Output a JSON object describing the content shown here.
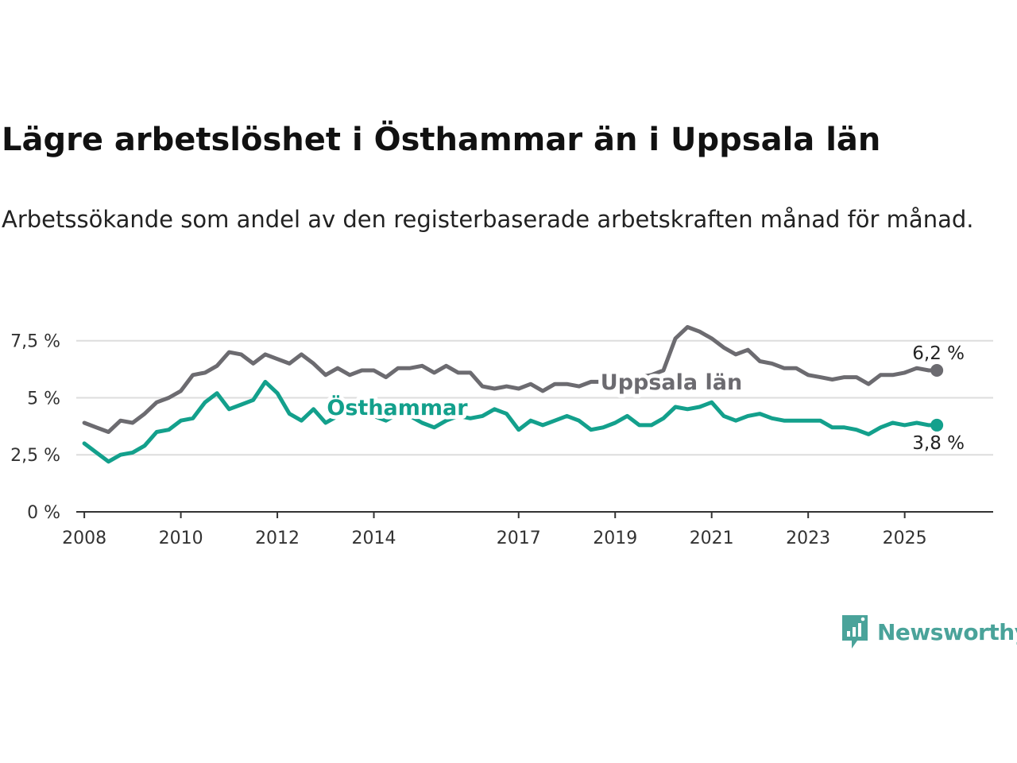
{
  "title": "Lägre arbetslöshet i Östhammar än i Uppsala län",
  "subtitle": "Arbetssökande som andel av den registerbaserade arbetskraften månad för månad.",
  "brand": {
    "name": "Newsworthy",
    "color": "#4aa39a",
    "icon": "bar-chart-speech-bubble-icon"
  },
  "chart_data": {
    "type": "line",
    "title": "Lägre arbetslöshet i Östhammar än i Uppsala län",
    "subtitle": "Arbetssökande som andel av den registerbaserade arbetskraften månad för månad.",
    "xlabel": "",
    "ylabel": "",
    "xlim": [
      "2007-11",
      "2026-11"
    ],
    "ylim": [
      0,
      8.5
    ],
    "grid": "horizontal",
    "legend": "inline labels",
    "x_ticks": [
      {
        "value": "2008-01",
        "label": "2008"
      },
      {
        "value": "2010-01",
        "label": "2010"
      },
      {
        "value": "2012-01",
        "label": "2012"
      },
      {
        "value": "2014-01",
        "label": "2014"
      },
      {
        "value": "2017-01",
        "label": "2017"
      },
      {
        "value": "2019-01",
        "label": "2019"
      },
      {
        "value": "2021-01",
        "label": "2021"
      },
      {
        "value": "2023-01",
        "label": "2023"
      },
      {
        "value": "2025-01",
        "label": "2025"
      }
    ],
    "y_ticks": [
      {
        "value": 0,
        "label": "0 %"
      },
      {
        "value": 2.5,
        "label": "2,5 %"
      },
      {
        "value": 5,
        "label": "5 %"
      },
      {
        "value": 7.5,
        "label": "7,5 %"
      }
    ],
    "series": [
      {
        "name": "Uppsala län",
        "color": "#6c6b70",
        "end_label": "6,2 %",
        "values": [
          [
            "2008-01",
            3.9
          ],
          [
            "2008-04",
            3.7
          ],
          [
            "2008-07",
            3.5
          ],
          [
            "2008-10",
            4.0
          ],
          [
            "2009-01",
            3.9
          ],
          [
            "2009-04",
            4.3
          ],
          [
            "2009-07",
            4.8
          ],
          [
            "2009-10",
            5.0
          ],
          [
            "2010-01",
            5.3
          ],
          [
            "2010-04",
            6.0
          ],
          [
            "2010-07",
            6.1
          ],
          [
            "2010-10",
            6.4
          ],
          [
            "2011-01",
            7.0
          ],
          [
            "2011-04",
            6.9
          ],
          [
            "2011-07",
            6.5
          ],
          [
            "2011-10",
            6.9
          ],
          [
            "2012-01",
            6.7
          ],
          [
            "2012-04",
            6.5
          ],
          [
            "2012-07",
            6.9
          ],
          [
            "2012-10",
            6.5
          ],
          [
            "2013-01",
            6.0
          ],
          [
            "2013-04",
            6.3
          ],
          [
            "2013-07",
            6.0
          ],
          [
            "2013-10",
            6.2
          ],
          [
            "2014-01",
            6.2
          ],
          [
            "2014-04",
            5.9
          ],
          [
            "2014-07",
            6.3
          ],
          [
            "2014-10",
            6.3
          ],
          [
            "2015-01",
            6.4
          ],
          [
            "2015-04",
            6.1
          ],
          [
            "2015-07",
            6.4
          ],
          [
            "2015-10",
            6.1
          ],
          [
            "2016-01",
            6.1
          ],
          [
            "2016-04",
            5.5
          ],
          [
            "2016-07",
            5.4
          ],
          [
            "2016-10",
            5.5
          ],
          [
            "2017-01",
            5.4
          ],
          [
            "2017-04",
            5.6
          ],
          [
            "2017-07",
            5.3
          ],
          [
            "2017-10",
            5.6
          ],
          [
            "2018-01",
            5.6
          ],
          [
            "2018-04",
            5.5
          ],
          [
            "2018-07",
            5.7
          ],
          [
            "2018-10",
            5.7
          ],
          [
            "2019-01",
            5.9
          ],
          [
            "2019-04",
            5.8
          ],
          [
            "2019-07",
            5.9
          ],
          [
            "2019-10",
            6.0
          ],
          [
            "2020-01",
            6.2
          ],
          [
            "2020-04",
            7.6
          ],
          [
            "2020-07",
            8.1
          ],
          [
            "2020-10",
            7.9
          ],
          [
            "2021-01",
            7.6
          ],
          [
            "2021-04",
            7.2
          ],
          [
            "2021-07",
            6.9
          ],
          [
            "2021-10",
            7.1
          ],
          [
            "2022-01",
            6.6
          ],
          [
            "2022-04",
            6.5
          ],
          [
            "2022-07",
            6.3
          ],
          [
            "2022-10",
            6.3
          ],
          [
            "2023-01",
            6.0
          ],
          [
            "2023-04",
            5.9
          ],
          [
            "2023-07",
            5.8
          ],
          [
            "2023-10",
            5.9
          ],
          [
            "2024-01",
            5.9
          ],
          [
            "2024-04",
            5.6
          ],
          [
            "2024-07",
            6.0
          ],
          [
            "2024-10",
            6.0
          ],
          [
            "2025-01",
            6.1
          ],
          [
            "2025-04",
            6.3
          ],
          [
            "2025-07",
            6.2
          ],
          [
            "2025-09",
            6.2
          ]
        ]
      },
      {
        "name": "Östhammar",
        "color": "#13a08c",
        "end_label": "3,8 %",
        "values": [
          [
            "2008-01",
            3.0
          ],
          [
            "2008-04",
            2.6
          ],
          [
            "2008-07",
            2.2
          ],
          [
            "2008-10",
            2.5
          ],
          [
            "2009-01",
            2.6
          ],
          [
            "2009-04",
            2.9
          ],
          [
            "2009-07",
            3.5
          ],
          [
            "2009-10",
            3.6
          ],
          [
            "2010-01",
            4.0
          ],
          [
            "2010-04",
            4.1
          ],
          [
            "2010-07",
            4.8
          ],
          [
            "2010-10",
            5.2
          ],
          [
            "2011-01",
            4.5
          ],
          [
            "2011-04",
            4.7
          ],
          [
            "2011-07",
            4.9
          ],
          [
            "2011-10",
            5.7
          ],
          [
            "2012-01",
            5.2
          ],
          [
            "2012-04",
            4.3
          ],
          [
            "2012-07",
            4.0
          ],
          [
            "2012-10",
            4.5
          ],
          [
            "2013-01",
            3.9
          ],
          [
            "2013-04",
            4.2
          ],
          [
            "2013-07",
            4.5
          ],
          [
            "2013-10",
            4.4
          ],
          [
            "2014-01",
            4.2
          ],
          [
            "2014-04",
            4.0
          ],
          [
            "2014-07",
            4.3
          ],
          [
            "2014-10",
            4.2
          ],
          [
            "2015-01",
            3.9
          ],
          [
            "2015-04",
            3.7
          ],
          [
            "2015-07",
            4.0
          ],
          [
            "2015-10",
            4.2
          ],
          [
            "2016-01",
            4.1
          ],
          [
            "2016-04",
            4.2
          ],
          [
            "2016-07",
            4.5
          ],
          [
            "2016-10",
            4.3
          ],
          [
            "2017-01",
            3.6
          ],
          [
            "2017-04",
            4.0
          ],
          [
            "2017-07",
            3.8
          ],
          [
            "2017-10",
            4.0
          ],
          [
            "2018-01",
            4.2
          ],
          [
            "2018-04",
            4.0
          ],
          [
            "2018-07",
            3.6
          ],
          [
            "2018-10",
            3.7
          ],
          [
            "2019-01",
            3.9
          ],
          [
            "2019-04",
            4.2
          ],
          [
            "2019-07",
            3.8
          ],
          [
            "2019-10",
            3.8
          ],
          [
            "2020-01",
            4.1
          ],
          [
            "2020-04",
            4.6
          ],
          [
            "2020-07",
            4.5
          ],
          [
            "2020-10",
            4.6
          ],
          [
            "2021-01",
            4.8
          ],
          [
            "2021-04",
            4.2
          ],
          [
            "2021-07",
            4.0
          ],
          [
            "2021-10",
            4.2
          ],
          [
            "2022-01",
            4.3
          ],
          [
            "2022-04",
            4.1
          ],
          [
            "2022-07",
            4.0
          ],
          [
            "2022-10",
            4.0
          ],
          [
            "2023-01",
            4.0
          ],
          [
            "2023-04",
            4.0
          ],
          [
            "2023-07",
            3.7
          ],
          [
            "2023-10",
            3.7
          ],
          [
            "2024-01",
            3.6
          ],
          [
            "2024-04",
            3.4
          ],
          [
            "2024-07",
            3.7
          ],
          [
            "2024-10",
            3.9
          ],
          [
            "2025-01",
            3.8
          ],
          [
            "2025-04",
            3.9
          ],
          [
            "2025-07",
            3.8
          ],
          [
            "2025-09",
            3.8
          ]
        ]
      }
    ]
  }
}
